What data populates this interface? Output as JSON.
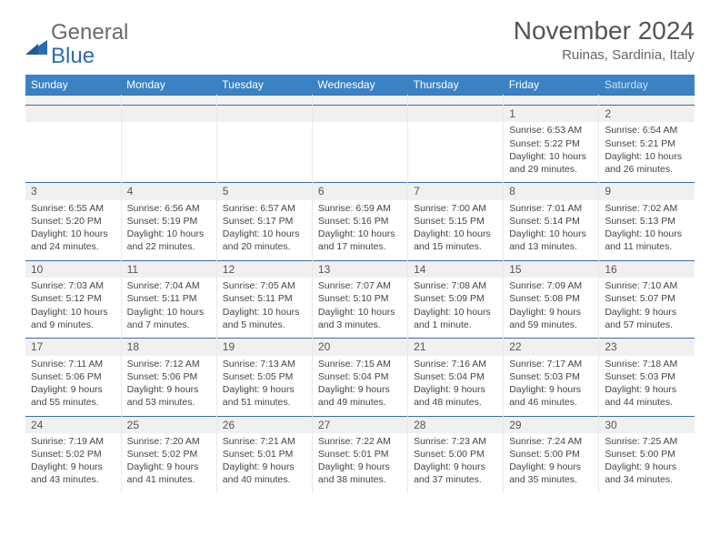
{
  "logo": {
    "text1": "General",
    "text2": "Blue",
    "mark_color": "#2a6db5"
  },
  "title": "November 2024",
  "location": "Ruinas, Sardinia, Italy",
  "colors": {
    "header_bg": "#3b82c4",
    "header_fg": "#ffffff",
    "row_sep": "#3b6fa3",
    "daynum_bg": "#f0f0f0",
    "logo_gray": "#6a6a6a",
    "logo_blue": "#2a6db5"
  },
  "fonts": {
    "title_pt": 28,
    "location_pt": 15,
    "dayhead_pt": 12,
    "cell_pt": 10.5
  },
  "day_headers": [
    "Sunday",
    "Monday",
    "Tuesday",
    "Wednesday",
    "Thursday",
    "Friday",
    "Saturday"
  ],
  "weeks": [
    [
      {
        "day": null
      },
      {
        "day": null
      },
      {
        "day": null
      },
      {
        "day": null
      },
      {
        "day": null
      },
      {
        "day": 1,
        "sunrise": "6:53 AM",
        "sunset": "5:22 PM",
        "daylight": "10 hours and 29 minutes."
      },
      {
        "day": 2,
        "sunrise": "6:54 AM",
        "sunset": "5:21 PM",
        "daylight": "10 hours and 26 minutes."
      }
    ],
    [
      {
        "day": 3,
        "sunrise": "6:55 AM",
        "sunset": "5:20 PM",
        "daylight": "10 hours and 24 minutes."
      },
      {
        "day": 4,
        "sunrise": "6:56 AM",
        "sunset": "5:19 PM",
        "daylight": "10 hours and 22 minutes."
      },
      {
        "day": 5,
        "sunrise": "6:57 AM",
        "sunset": "5:17 PM",
        "daylight": "10 hours and 20 minutes."
      },
      {
        "day": 6,
        "sunrise": "6:59 AM",
        "sunset": "5:16 PM",
        "daylight": "10 hours and 17 minutes."
      },
      {
        "day": 7,
        "sunrise": "7:00 AM",
        "sunset": "5:15 PM",
        "daylight": "10 hours and 15 minutes."
      },
      {
        "day": 8,
        "sunrise": "7:01 AM",
        "sunset": "5:14 PM",
        "daylight": "10 hours and 13 minutes."
      },
      {
        "day": 9,
        "sunrise": "7:02 AM",
        "sunset": "5:13 PM",
        "daylight": "10 hours and 11 minutes."
      }
    ],
    [
      {
        "day": 10,
        "sunrise": "7:03 AM",
        "sunset": "5:12 PM",
        "daylight": "10 hours and 9 minutes."
      },
      {
        "day": 11,
        "sunrise": "7:04 AM",
        "sunset": "5:11 PM",
        "daylight": "10 hours and 7 minutes."
      },
      {
        "day": 12,
        "sunrise": "7:05 AM",
        "sunset": "5:11 PM",
        "daylight": "10 hours and 5 minutes."
      },
      {
        "day": 13,
        "sunrise": "7:07 AM",
        "sunset": "5:10 PM",
        "daylight": "10 hours and 3 minutes."
      },
      {
        "day": 14,
        "sunrise": "7:08 AM",
        "sunset": "5:09 PM",
        "daylight": "10 hours and 1 minute."
      },
      {
        "day": 15,
        "sunrise": "7:09 AM",
        "sunset": "5:08 PM",
        "daylight": "9 hours and 59 minutes."
      },
      {
        "day": 16,
        "sunrise": "7:10 AM",
        "sunset": "5:07 PM",
        "daylight": "9 hours and 57 minutes."
      }
    ],
    [
      {
        "day": 17,
        "sunrise": "7:11 AM",
        "sunset": "5:06 PM",
        "daylight": "9 hours and 55 minutes."
      },
      {
        "day": 18,
        "sunrise": "7:12 AM",
        "sunset": "5:06 PM",
        "daylight": "9 hours and 53 minutes."
      },
      {
        "day": 19,
        "sunrise": "7:13 AM",
        "sunset": "5:05 PM",
        "daylight": "9 hours and 51 minutes."
      },
      {
        "day": 20,
        "sunrise": "7:15 AM",
        "sunset": "5:04 PM",
        "daylight": "9 hours and 49 minutes."
      },
      {
        "day": 21,
        "sunrise": "7:16 AM",
        "sunset": "5:04 PM",
        "daylight": "9 hours and 48 minutes."
      },
      {
        "day": 22,
        "sunrise": "7:17 AM",
        "sunset": "5:03 PM",
        "daylight": "9 hours and 46 minutes."
      },
      {
        "day": 23,
        "sunrise": "7:18 AM",
        "sunset": "5:03 PM",
        "daylight": "9 hours and 44 minutes."
      }
    ],
    [
      {
        "day": 24,
        "sunrise": "7:19 AM",
        "sunset": "5:02 PM",
        "daylight": "9 hours and 43 minutes."
      },
      {
        "day": 25,
        "sunrise": "7:20 AM",
        "sunset": "5:02 PM",
        "daylight": "9 hours and 41 minutes."
      },
      {
        "day": 26,
        "sunrise": "7:21 AM",
        "sunset": "5:01 PM",
        "daylight": "9 hours and 40 minutes."
      },
      {
        "day": 27,
        "sunrise": "7:22 AM",
        "sunset": "5:01 PM",
        "daylight": "9 hours and 38 minutes."
      },
      {
        "day": 28,
        "sunrise": "7:23 AM",
        "sunset": "5:00 PM",
        "daylight": "9 hours and 37 minutes."
      },
      {
        "day": 29,
        "sunrise": "7:24 AM",
        "sunset": "5:00 PM",
        "daylight": "9 hours and 35 minutes."
      },
      {
        "day": 30,
        "sunrise": "7:25 AM",
        "sunset": "5:00 PM",
        "daylight": "9 hours and 34 minutes."
      }
    ]
  ],
  "labels": {
    "sunrise": "Sunrise:",
    "sunset": "Sunset:",
    "daylight": "Daylight:"
  }
}
